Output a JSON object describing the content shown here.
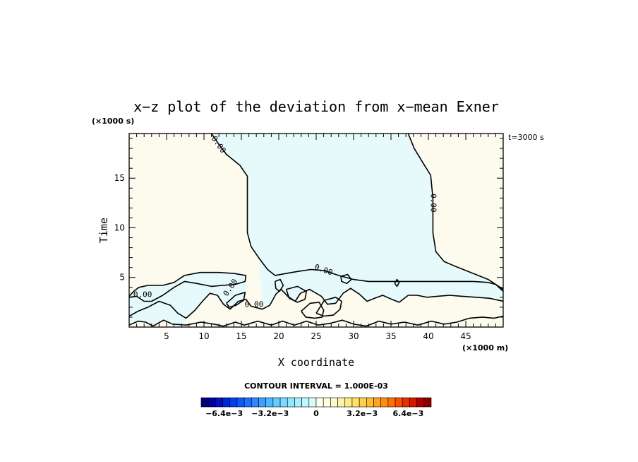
{
  "chart_data": {
    "type": "contour",
    "title": "x−z plot of the deviation from x−mean Exner",
    "xlabel": "X coordinate",
    "ylabel": "Time",
    "x_unit": "(×1000 m)",
    "y_unit": "(×1000 s)",
    "time_label": "t=3000 s",
    "xlim": [
      0,
      50
    ],
    "ylim": [
      0,
      19.5
    ],
    "x_ticks": [
      "5",
      "10",
      "15",
      "20",
      "25",
      "30",
      "35",
      "40",
      "45"
    ],
    "y_ticks": [
      "5",
      "10",
      "15"
    ],
    "contour_interval_text": "CONTOUR INTERVAL = 1.000E-03",
    "contour_label": "0.00",
    "fill_colors": {
      "positive": "#fdfbee",
      "negative": "#e6fafc",
      "line": "#000000"
    },
    "colorbar": {
      "tick_labels": [
        "−6.4e−3",
        "−3.2e−3",
        "0",
        "3.2e−3",
        "6.4e−3"
      ],
      "tick_values": [
        -0.0064,
        -0.0032,
        0,
        0.0032,
        0.0064
      ],
      "range": [
        -0.008,
        0.008
      ],
      "colors": [
        "#00007f",
        "#0000a0",
        "#0010c0",
        "#0028d8",
        "#0040f0",
        "#1058f8",
        "#2070ff",
        "#2f88ff",
        "#3fa0ff",
        "#4fb8ff",
        "#60ccff",
        "#78dcff",
        "#90e8ff",
        "#a8f0ff",
        "#c0f6ff",
        "#d8fbff",
        "#fffff0",
        "#fffce0",
        "#fff8c8",
        "#fff2a8",
        "#ffea88",
        "#ffe068",
        "#ffd048",
        "#ffbc30",
        "#ffa420",
        "#ff8c10",
        "#ff7000",
        "#f85000",
        "#e83000",
        "#d01800",
        "#b00000",
        "#8a0000"
      ]
    },
    "zero_contours": [
      {
        "name": "upper-left",
        "points": [
          [
            11,
            19.5
          ],
          [
            12,
            18.4
          ],
          [
            13,
            17.4
          ],
          [
            14.8,
            16.3
          ],
          [
            15.8,
            15.2
          ],
          [
            15.8,
            12.5
          ],
          [
            15.8,
            9.5
          ],
          [
            16.3,
            8.1
          ],
          [
            17.4,
            6.9
          ],
          [
            18.5,
            5.8
          ],
          [
            19.5,
            5.2
          ],
          [
            21,
            5.4
          ],
          [
            22.5,
            5.6
          ],
          [
            24.3,
            5.8
          ],
          [
            26,
            5.7
          ],
          [
            28,
            5.2
          ],
          [
            30,
            4.8
          ],
          [
            32,
            4.6
          ],
          [
            34.5,
            4.6
          ],
          [
            37,
            4.6
          ],
          [
            40,
            4.6
          ],
          [
            43,
            4.6
          ],
          [
            46,
            4.6
          ],
          [
            48,
            4.5
          ],
          [
            49,
            4.3
          ],
          [
            50,
            3.6
          ]
        ]
      },
      {
        "name": "upper-right",
        "points": [
          [
            37.3,
            19.5
          ],
          [
            38.1,
            18
          ],
          [
            39.4,
            16.4
          ],
          [
            40.3,
            15.3
          ],
          [
            40.6,
            13
          ],
          [
            40.6,
            9.5
          ],
          [
            41,
            7.6
          ],
          [
            42.1,
            6.6
          ],
          [
            44,
            6
          ],
          [
            46,
            5.4
          ],
          [
            48,
            4.8
          ],
          [
            50,
            3.8
          ]
        ]
      },
      {
        "name": "left-band-top",
        "points": [
          [
            0,
            3.1
          ],
          [
            0.6,
            3.6
          ],
          [
            1.3,
            4
          ],
          [
            2.5,
            4.2
          ],
          [
            4.5,
            4.2
          ],
          [
            6,
            4.5
          ],
          [
            7.4,
            5.2
          ],
          [
            9.5,
            5.5
          ],
          [
            12,
            5.5
          ],
          [
            14,
            5.4
          ],
          [
            15.6,
            5.2
          ],
          [
            15.5,
            4.6
          ],
          [
            14.2,
            4.3
          ],
          [
            12.5,
            4.2
          ],
          [
            11,
            4.1
          ],
          [
            9,
            4.4
          ],
          [
            7.4,
            4.6
          ],
          [
            6,
            4
          ],
          [
            4.5,
            3.2
          ],
          [
            3,
            2.6
          ],
          [
            2,
            2.6
          ],
          [
            1,
            3.1
          ],
          [
            0,
            3
          ]
        ]
      },
      {
        "name": "lower-band",
        "points": [
          [
            0,
            1.1
          ],
          [
            1.2,
            1.6
          ],
          [
            2.5,
            2
          ],
          [
            4,
            2.6
          ],
          [
            5.5,
            2.2
          ],
          [
            6.5,
            1.4
          ],
          [
            7.6,
            0.9
          ],
          [
            8.8,
            1.7
          ],
          [
            9.8,
            2.6
          ],
          [
            10.8,
            3.4
          ],
          [
            11.8,
            3.2
          ],
          [
            12.6,
            2.3
          ],
          [
            13.5,
            1.8
          ],
          [
            14.6,
            2.6
          ],
          [
            15.6,
            2.8
          ],
          [
            16.3,
            2.1
          ],
          [
            17.8,
            1.8
          ],
          [
            18.8,
            2.2
          ],
          [
            19.6,
            3.3
          ],
          [
            20.3,
            3.8
          ],
          [
            21.2,
            3.1
          ],
          [
            22.2,
            2.6
          ],
          [
            22.9,
            3.4
          ],
          [
            24.1,
            3.8
          ],
          [
            25.7,
            3.1
          ],
          [
            26.5,
            2.3
          ],
          [
            27.6,
            2.4
          ],
          [
            28.6,
            3.4
          ],
          [
            29.6,
            3.9
          ],
          [
            30.8,
            3.3
          ],
          [
            31.8,
            2.6
          ],
          [
            32.8,
            2.9
          ],
          [
            33.9,
            3.2
          ],
          [
            35.1,
            2.8
          ],
          [
            36.1,
            2.5
          ],
          [
            37.3,
            3.2
          ],
          [
            38.5,
            3.2
          ],
          [
            39.8,
            3
          ],
          [
            41.2,
            3.1
          ],
          [
            42.8,
            3.2
          ],
          [
            44.5,
            3.1
          ],
          [
            46.4,
            3
          ],
          [
            48.2,
            2.9
          ],
          [
            50,
            2.6
          ]
        ]
      },
      {
        "name": "bottom-ripples",
        "points": [
          [
            0,
            0.2
          ],
          [
            1.2,
            0.6
          ],
          [
            2.2,
            0.5
          ],
          [
            3.2,
            0.1
          ],
          [
            4.6,
            0.7
          ],
          [
            5.8,
            0.3
          ],
          [
            7.6,
            0.2
          ],
          [
            9.6,
            0.5
          ],
          [
            11.3,
            0.3
          ],
          [
            12.6,
            0.1
          ],
          [
            14.2,
            0.5
          ],
          [
            15.4,
            0.2
          ],
          [
            17.2,
            0.6
          ],
          [
            19,
            0.2
          ],
          [
            20.5,
            0.6
          ],
          [
            22.1,
            0.2
          ],
          [
            23.7,
            0.6
          ],
          [
            25.3,
            0.2
          ],
          [
            27,
            0.4
          ],
          [
            28.5,
            0.7
          ],
          [
            30,
            0.3
          ],
          [
            31.7,
            0.1
          ],
          [
            33.4,
            0.6
          ],
          [
            35,
            0.3
          ],
          [
            36.8,
            0.5
          ],
          [
            38.6,
            0.2
          ],
          [
            40.4,
            0.6
          ],
          [
            42.1,
            0.3
          ],
          [
            43.8,
            0.5
          ],
          [
            45.5,
            0.9
          ],
          [
            47.2,
            1
          ],
          [
            48.8,
            0.9
          ],
          [
            50,
            1.1
          ]
        ]
      },
      {
        "name": "cell-a",
        "points": [
          [
            21,
            3.8
          ],
          [
            22.5,
            4.1
          ],
          [
            23.7,
            3.6
          ],
          [
            23.5,
            2.8
          ],
          [
            22.5,
            2.5
          ],
          [
            21.4,
            2.9
          ],
          [
            21,
            3.8
          ]
        ]
      },
      {
        "name": "cell-b",
        "points": [
          [
            23,
            1.6
          ],
          [
            24.2,
            2.4
          ],
          [
            25.4,
            2.5
          ],
          [
            26,
            1.7
          ],
          [
            25.8,
            1
          ],
          [
            24.8,
            0.9
          ],
          [
            23.6,
            1
          ],
          [
            23,
            1.6
          ]
        ]
      },
      {
        "name": "cell-c",
        "points": [
          [
            25,
            1.4
          ],
          [
            26.1,
            2.7
          ],
          [
            27.6,
            3
          ],
          [
            28.4,
            2.6
          ],
          [
            28.2,
            1.8
          ],
          [
            27.3,
            1.2
          ],
          [
            26,
            1.1
          ],
          [
            25,
            1.4
          ]
        ]
      },
      {
        "name": "cell-d",
        "points": [
          [
            13,
            2.4
          ],
          [
            14.2,
            3.2
          ],
          [
            15.5,
            3.5
          ],
          [
            15.3,
            2.7
          ],
          [
            14.3,
            2.2
          ],
          [
            13.4,
            2
          ],
          [
            13,
            2.4
          ]
        ]
      },
      {
        "name": "cell-e",
        "points": [
          [
            35.5,
            4.4
          ],
          [
            35.8,
            4.8
          ],
          [
            36.1,
            4.5
          ],
          [
            35.8,
            4.1
          ],
          [
            35.5,
            4.4
          ]
        ]
      },
      {
        "name": "cell-f",
        "points": [
          [
            19.5,
            4.6
          ],
          [
            20.2,
            4.8
          ],
          [
            20.6,
            4.2
          ],
          [
            20.1,
            3.6
          ],
          [
            19.6,
            3.9
          ],
          [
            19.5,
            4.6
          ]
        ]
      },
      {
        "name": "cell-g",
        "points": [
          [
            28.3,
            5.1
          ],
          [
            29.2,
            5.3
          ],
          [
            29.7,
            4.8
          ],
          [
            29.1,
            4.4
          ],
          [
            28.4,
            4.6
          ],
          [
            28.3,
            5.1
          ]
        ]
      }
    ],
    "label_positions": [
      [
        12,
        18.4
      ],
      [
        40.7,
        12.5
      ],
      [
        26,
        5.8
      ],
      [
        1.8,
        3.3
      ],
      [
        13.5,
        4
      ],
      [
        16.7,
        2.3
      ]
    ]
  }
}
